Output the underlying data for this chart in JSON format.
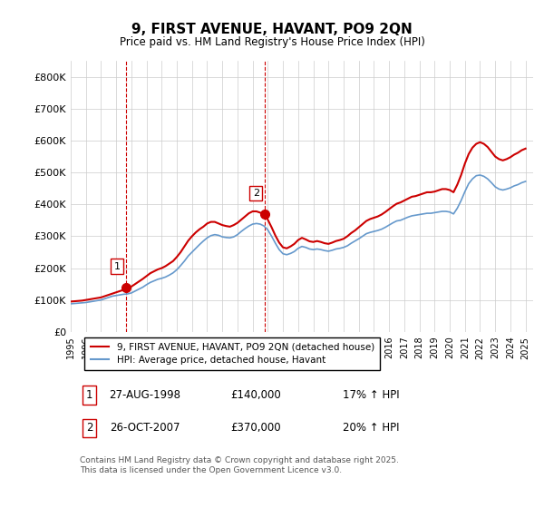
{
  "title": "9, FIRST AVENUE, HAVANT, PO9 2QN",
  "subtitle": "Price paid vs. HM Land Registry's House Price Index (HPI)",
  "ylabel_ticks": [
    "£0",
    "£100K",
    "£200K",
    "£300K",
    "£400K",
    "£500K",
    "£600K",
    "£700K",
    "£800K"
  ],
  "ylim": [
    0,
    850000
  ],
  "xlim_start": 1995.0,
  "xlim_end": 2025.5,
  "xticks": [
    1995,
    1996,
    1997,
    1998,
    1999,
    2000,
    2001,
    2002,
    2003,
    2004,
    2005,
    2006,
    2007,
    2008,
    2009,
    2010,
    2011,
    2012,
    2013,
    2014,
    2015,
    2016,
    2017,
    2018,
    2019,
    2020,
    2021,
    2022,
    2023,
    2024,
    2025
  ],
  "property_color": "#cc0000",
  "hpi_color": "#6699cc",
  "vline_color": "#cc0000",
  "grid_color": "#cccccc",
  "background_color": "#ffffff",
  "sale1_x": 1998.65,
  "sale1_y": 140000,
  "sale1_label": "1",
  "sale2_x": 2007.82,
  "sale2_y": 370000,
  "sale2_label": "2",
  "legend_property": "9, FIRST AVENUE, HAVANT, PO9 2QN (detached house)",
  "legend_hpi": "HPI: Average price, detached house, Havant",
  "table_data": [
    [
      "1",
      "27-AUG-1998",
      "£140,000",
      "17% ↑ HPI"
    ],
    [
      "2",
      "26-OCT-2007",
      "£370,000",
      "20% ↑ HPI"
    ]
  ],
  "footnote": "Contains HM Land Registry data © Crown copyright and database right 2025.\nThis data is licensed under the Open Government Licence v3.0.",
  "hpi_data": {
    "years": [
      1995.0,
      1995.25,
      1995.5,
      1995.75,
      1996.0,
      1996.25,
      1996.5,
      1996.75,
      1997.0,
      1997.25,
      1997.5,
      1997.75,
      1998.0,
      1998.25,
      1998.5,
      1998.75,
      1999.0,
      1999.25,
      1999.5,
      1999.75,
      2000.0,
      2000.25,
      2000.5,
      2000.75,
      2001.0,
      2001.25,
      2001.5,
      2001.75,
      2002.0,
      2002.25,
      2002.5,
      2002.75,
      2003.0,
      2003.25,
      2003.5,
      2003.75,
      2004.0,
      2004.25,
      2004.5,
      2004.75,
      2005.0,
      2005.25,
      2005.5,
      2005.75,
      2006.0,
      2006.25,
      2006.5,
      2006.75,
      2007.0,
      2007.25,
      2007.5,
      2007.75,
      2008.0,
      2008.25,
      2008.5,
      2008.75,
      2009.0,
      2009.25,
      2009.5,
      2009.75,
      2010.0,
      2010.25,
      2010.5,
      2010.75,
      2011.0,
      2011.25,
      2011.5,
      2011.75,
      2012.0,
      2012.25,
      2012.5,
      2012.75,
      2013.0,
      2013.25,
      2013.5,
      2013.75,
      2014.0,
      2014.25,
      2014.5,
      2014.75,
      2015.0,
      2015.25,
      2015.5,
      2015.75,
      2016.0,
      2016.25,
      2016.5,
      2016.75,
      2017.0,
      2017.25,
      2017.5,
      2017.75,
      2018.0,
      2018.25,
      2018.5,
      2018.75,
      2019.0,
      2019.25,
      2019.5,
      2019.75,
      2020.0,
      2020.25,
      2020.5,
      2020.75,
      2021.0,
      2021.25,
      2021.5,
      2021.75,
      2022.0,
      2022.25,
      2022.5,
      2022.75,
      2023.0,
      2023.25,
      2023.5,
      2023.75,
      2024.0,
      2024.25,
      2024.5,
      2024.75,
      2025.0
    ],
    "values": [
      88000,
      89000,
      90000,
      91000,
      92000,
      94000,
      96000,
      98000,
      100000,
      104000,
      108000,
      112000,
      114000,
      116000,
      118000,
      119000,
      122000,
      128000,
      134000,
      140000,
      148000,
      155000,
      160000,
      165000,
      168000,
      172000,
      178000,
      185000,
      195000,
      208000,
      222000,
      238000,
      250000,
      262000,
      274000,
      285000,
      295000,
      302000,
      305000,
      303000,
      298000,
      296000,
      295000,
      298000,
      305000,
      315000,
      324000,
      332000,
      338000,
      340000,
      338000,
      332000,
      320000,
      300000,
      278000,
      258000,
      245000,
      242000,
      246000,
      252000,
      262000,
      268000,
      265000,
      260000,
      258000,
      260000,
      258000,
      255000,
      253000,
      256000,
      260000,
      262000,
      265000,
      270000,
      278000,
      285000,
      292000,
      300000,
      308000,
      312000,
      315000,
      318000,
      322000,
      328000,
      335000,
      342000,
      348000,
      350000,
      355000,
      360000,
      364000,
      366000,
      368000,
      370000,
      372000,
      372000,
      374000,
      376000,
      378000,
      378000,
      376000,
      370000,
      388000,
      412000,
      440000,
      465000,
      480000,
      490000,
      492000,
      488000,
      480000,
      468000,
      455000,
      448000,
      445000,
      448000,
      452000,
      458000,
      462000,
      468000,
      472000
    ]
  },
  "property_data": {
    "years": [
      1995.0,
      1995.25,
      1995.5,
      1995.75,
      1996.0,
      1996.25,
      1996.5,
      1996.75,
      1997.0,
      1997.25,
      1997.5,
      1997.75,
      1998.0,
      1998.25,
      1998.5,
      1998.75,
      1999.0,
      1999.25,
      1999.5,
      1999.75,
      2000.0,
      2000.25,
      2000.5,
      2000.75,
      2001.0,
      2001.25,
      2001.5,
      2001.75,
      2002.0,
      2002.25,
      2002.5,
      2002.75,
      2003.0,
      2003.25,
      2003.5,
      2003.75,
      2004.0,
      2004.25,
      2004.5,
      2004.75,
      2005.0,
      2005.25,
      2005.5,
      2005.75,
      2006.0,
      2006.25,
      2006.5,
      2006.75,
      2007.0,
      2007.25,
      2007.5,
      2007.75,
      2008.0,
      2008.25,
      2008.5,
      2008.75,
      2009.0,
      2009.25,
      2009.5,
      2009.75,
      2010.0,
      2010.25,
      2010.5,
      2010.75,
      2011.0,
      2011.25,
      2011.5,
      2011.75,
      2012.0,
      2012.25,
      2012.5,
      2012.75,
      2013.0,
      2013.25,
      2013.5,
      2013.75,
      2014.0,
      2014.25,
      2014.5,
      2014.75,
      2015.0,
      2015.25,
      2015.5,
      2015.75,
      2016.0,
      2016.25,
      2016.5,
      2016.75,
      2017.0,
      2017.25,
      2017.5,
      2017.75,
      2018.0,
      2018.25,
      2018.5,
      2018.75,
      2019.0,
      2019.25,
      2019.5,
      2019.75,
      2020.0,
      2020.25,
      2020.5,
      2020.75,
      2021.0,
      2021.25,
      2021.5,
      2021.75,
      2022.0,
      2022.25,
      2022.5,
      2022.75,
      2023.0,
      2023.25,
      2023.5,
      2023.75,
      2024.0,
      2024.25,
      2024.5,
      2024.75,
      2025.0
    ],
    "values": [
      95000,
      96000,
      97000,
      98000,
      100000,
      102000,
      104000,
      106000,
      108000,
      112000,
      116000,
      120000,
      124000,
      128000,
      132000,
      136000,
      142000,
      150000,
      158000,
      166000,
      175000,
      184000,
      190000,
      196000,
      200000,
      206000,
      214000,
      222000,
      235000,
      250000,
      268000,
      286000,
      300000,
      312000,
      322000,
      330000,
      340000,
      345000,
      345000,
      340000,
      335000,
      332000,
      330000,
      335000,
      342000,
      352000,
      362000,
      372000,
      378000,
      378000,
      374000,
      366000,
      352000,
      328000,
      302000,
      280000,
      265000,
      262000,
      268000,
      276000,
      288000,
      295000,
      290000,
      284000,
      282000,
      285000,
      282000,
      278000,
      276000,
      280000,
      285000,
      288000,
      292000,
      300000,
      310000,
      318000,
      328000,
      338000,
      348000,
      354000,
      358000,
      362000,
      368000,
      376000,
      385000,
      394000,
      402000,
      406000,
      412000,
      418000,
      424000,
      426000,
      430000,
      434000,
      438000,
      438000,
      440000,
      444000,
      448000,
      448000,
      445000,
      438000,
      462000,
      492000,
      528000,
      558000,
      578000,
      590000,
      595000,
      590000,
      580000,
      565000,
      550000,
      542000,
      538000,
      542000,
      548000,
      556000,
      562000,
      570000,
      575000
    ]
  }
}
